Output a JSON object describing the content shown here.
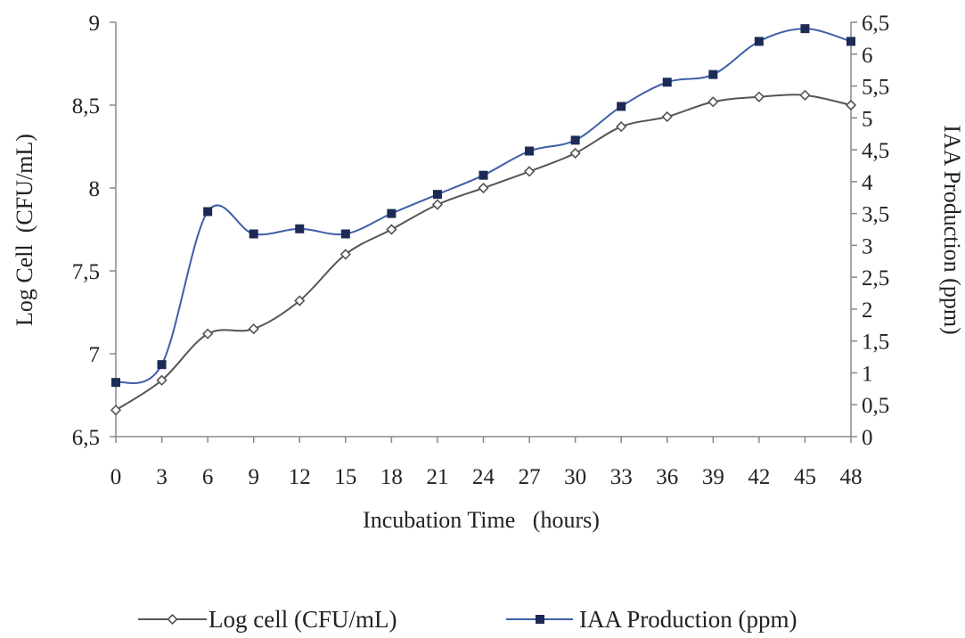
{
  "chart_data": {
    "type": "line",
    "x": [
      0,
      3,
      6,
      9,
      12,
      15,
      18,
      21,
      24,
      27,
      30,
      33,
      36,
      39,
      42,
      45,
      48
    ],
    "xticks": [
      "0",
      "3",
      "6",
      "9",
      "12",
      "15",
      "18",
      "21",
      "24",
      "27",
      "30",
      "33",
      "36",
      "39",
      "42",
      "45",
      "48"
    ],
    "xlabel": "Incubation Time   (hours)",
    "ylabel_left": "Log Cell  (CFU/mL)",
    "ylabel_right": "IAA Production (ppm)",
    "ylim_left": [
      6.5,
      9
    ],
    "ylim_right": [
      0,
      6.5
    ],
    "yticks_left": [
      "6,5",
      "7",
      "7,5",
      "8",
      "8,5",
      "9"
    ],
    "yticks_right": [
      "0",
      "0,5",
      "1",
      "1,5",
      "2",
      "2,5",
      "3",
      "3,5",
      "4",
      "4,5",
      "5",
      "5,5",
      "6",
      "6,5"
    ],
    "grid": false,
    "legend_position": "bottom",
    "series": [
      {
        "name": "Log cell (CFU/mL)",
        "axis": "left",
        "marker": "diamond",
        "color": "#555555",
        "values": [
          6.66,
          6.84,
          7.12,
          7.15,
          7.32,
          7.6,
          7.75,
          7.9,
          8.0,
          8.1,
          8.21,
          8.37,
          8.43,
          8.52,
          8.55,
          8.56,
          8.5
        ]
      },
      {
        "name": "IAA Production (ppm)",
        "axis": "right",
        "marker": "square",
        "color": "#3f5fa8",
        "values": [
          0.85,
          1.13,
          3.53,
          3.18,
          3.26,
          3.18,
          3.5,
          3.8,
          4.1,
          4.48,
          4.65,
          5.18,
          5.56,
          5.68,
          6.2,
          6.4,
          6.2
        ]
      }
    ]
  }
}
